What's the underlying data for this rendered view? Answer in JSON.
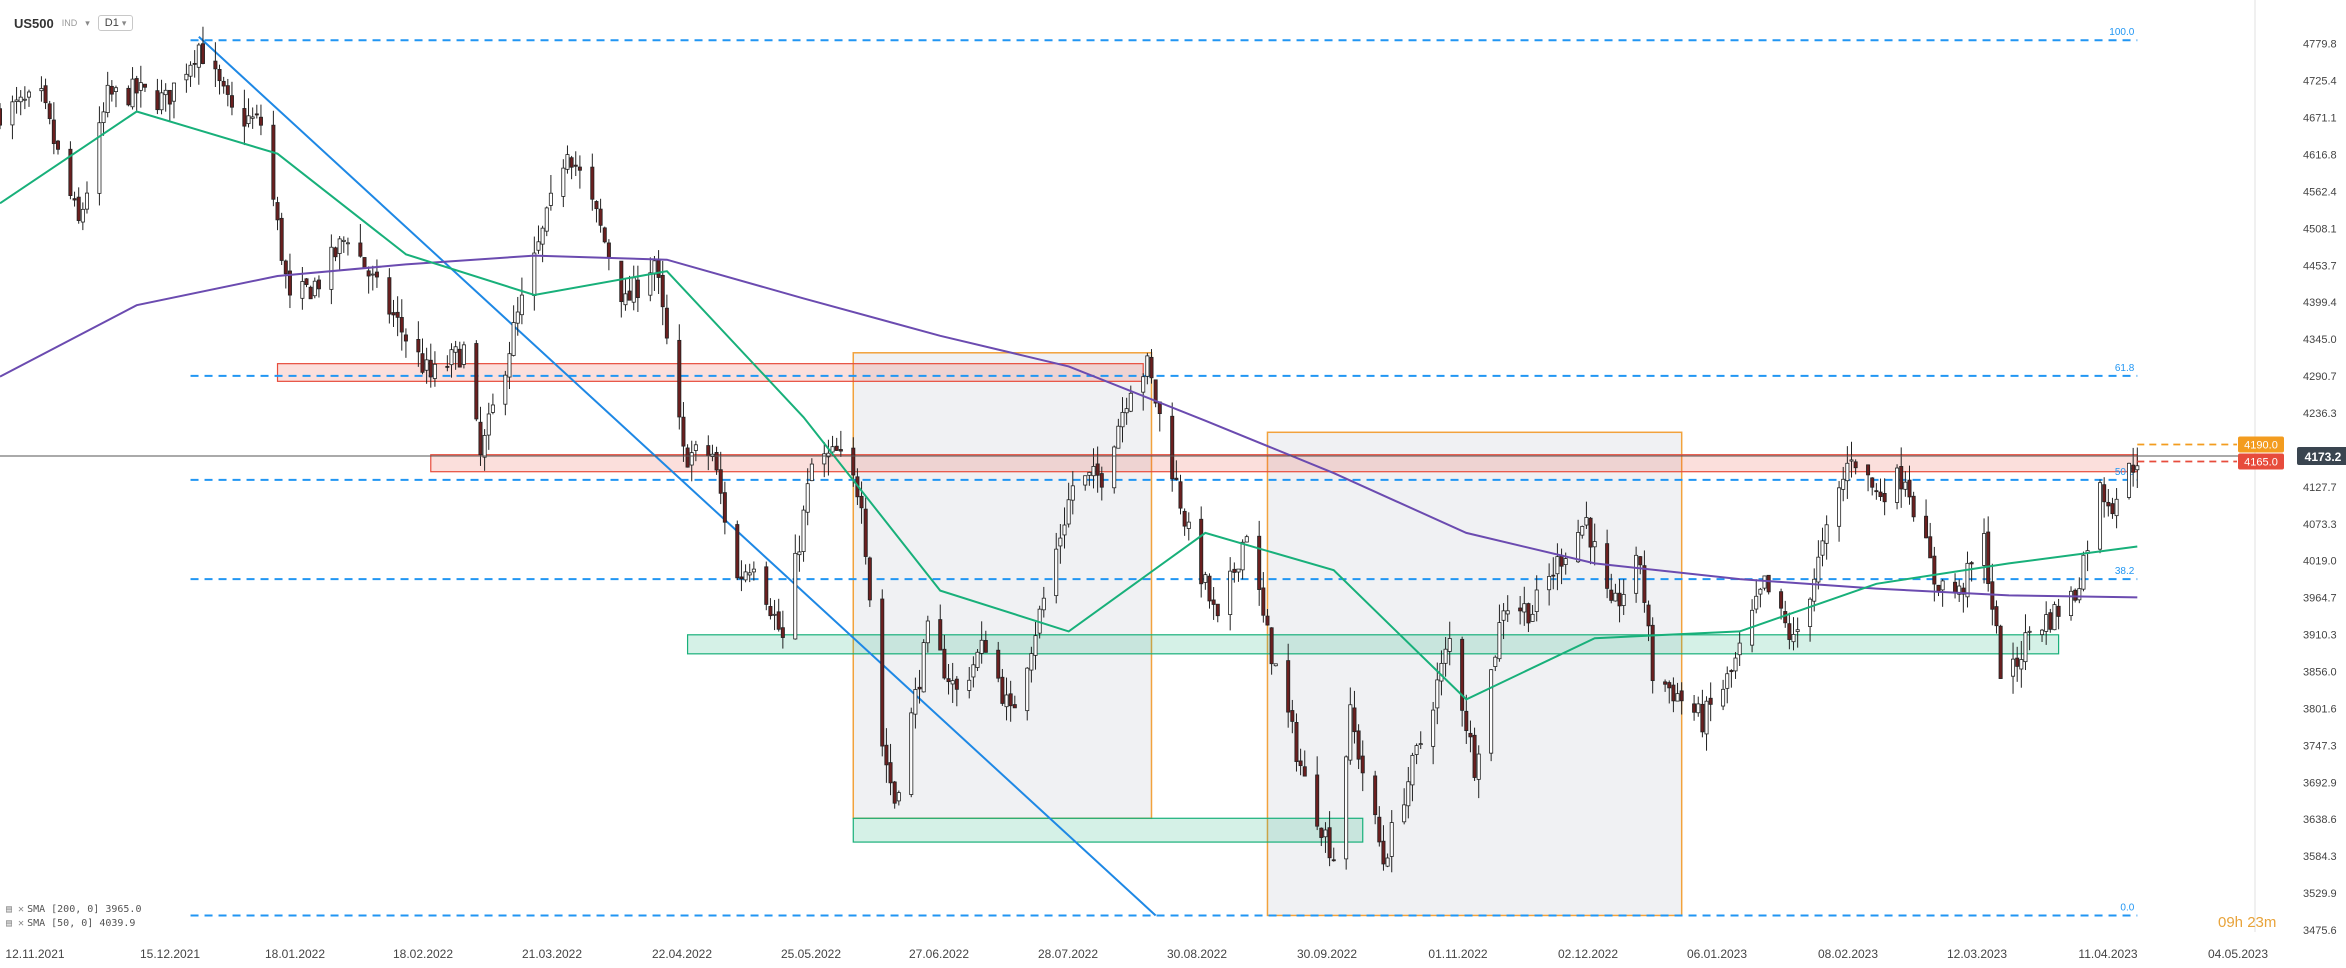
{
  "header": {
    "symbol": "US500",
    "symbol_note": "IND",
    "timeframe": "D1"
  },
  "indicators": [
    {
      "label": "SMA [200, 0]",
      "value": "3965.0",
      "color": "#6b4bb0"
    },
    {
      "label": "SMA [50, 0]",
      "value": "4039.9",
      "color": "#18b07a"
    }
  ],
  "countdown": "09h 23m",
  "chart_data": {
    "type": "candlestick",
    "ylim": [
      3475.6,
      4800
    ],
    "y_ticks": [
      "4779.8",
      "4725.4",
      "4671.1",
      "4616.8",
      "4562.4",
      "4508.1",
      "4453.7",
      "4399.4",
      "4345.0",
      "4290.7",
      "4236.3",
      "4127.7",
      "4073.3",
      "4019.0",
      "3964.7",
      "3910.3",
      "3856.0",
      "3801.6",
      "3747.3",
      "3692.9",
      "3638.6",
      "3584.3",
      "3529.9",
      "3475.6"
    ],
    "x_ticks": [
      "12.11.2021",
      "15.12.2021",
      "18.01.2022",
      "18.02.2022",
      "21.03.2022",
      "22.04.2022",
      "25.05.2022",
      "27.06.2022",
      "28.07.2022",
      "30.08.2022",
      "30.09.2022",
      "01.11.2022",
      "02.12.2022",
      "06.01.2023",
      "08.02.2023",
      "12.03.2023",
      "11.04.2023",
      "04.05.2023"
    ],
    "x_range": [
      "2021-11-12",
      "2023-05-08"
    ],
    "last_price": "4173.2",
    "price_tags": [
      {
        "label": "4190.0",
        "value": 4190.0,
        "color": "#f39c1f"
      },
      {
        "label": "4165.0",
        "value": 4165.0,
        "color": "#e74c3c"
      }
    ],
    "fib_levels": [
      {
        "label": "100.0",
        "value": 4785
      },
      {
        "label": "61.8",
        "value": 4291
      },
      {
        "label": "50.0",
        "value": 4138
      },
      {
        "label": "38.2",
        "value": 3992
      },
      {
        "label": "0.0",
        "value": 3497
      }
    ],
    "zones": [
      {
        "kind": "resistance",
        "x": [
          "2022-01-18",
          "2022-08-15"
        ],
        "y": [
          4283,
          4309
        ],
        "color": "#e74c3c"
      },
      {
        "kind": "resistance",
        "x": [
          "2022-02-24",
          "2023-04-12"
        ],
        "y": [
          4150,
          4175
        ],
        "color": "#e74c3c"
      },
      {
        "kind": "support",
        "x": [
          "2022-04-27",
          "2023-03-24"
        ],
        "y": [
          3882,
          3910
        ],
        "color": "#18b07a"
      },
      {
        "kind": "support",
        "x": [
          "2022-06-06",
          "2022-10-07"
        ],
        "y": [
          3605,
          3640
        ],
        "color": "#18b07a"
      }
    ],
    "ranges": [
      {
        "x": [
          "2022-06-06",
          "2022-08-17"
        ],
        "y": [
          3640,
          4325
        ]
      },
      {
        "x": [
          "2022-09-14",
          "2022-12-23"
        ],
        "y": [
          3497,
          4208
        ]
      }
    ],
    "trendline": {
      "from": [
        "2021-12-30",
        4790
      ],
      "to": [
        "2022-08-18",
        3497
      ]
    },
    "closes": [
      [
        "2021-11-12",
        4680
      ],
      [
        "2021-11-22",
        4697
      ],
      [
        "2021-12-01",
        4513
      ],
      [
        "2021-12-08",
        4701
      ],
      [
        "2021-12-15",
        4709
      ],
      [
        "2021-12-22",
        4696
      ],
      [
        "2021-12-30",
        4778
      ],
      [
        "2022-01-07",
        4677
      ],
      [
        "2022-01-14",
        4662
      ],
      [
        "2022-01-21",
        4397
      ],
      [
        "2022-01-28",
        4431
      ],
      [
        "2022-02-04",
        4500
      ],
      [
        "2022-02-11",
        4418
      ],
      [
        "2022-02-18",
        4348
      ],
      [
        "2022-02-24",
        4288
      ],
      [
        "2022-03-04",
        4329
      ],
      [
        "2022-03-08",
        4170
      ],
      [
        "2022-03-16",
        4357
      ],
      [
        "2022-03-24",
        4520
      ],
      [
        "2022-03-29",
        4631
      ],
      [
        "2022-04-05",
        4525
      ],
      [
        "2022-04-12",
        4397
      ],
      [
        "2022-04-19",
        4462
      ],
      [
        "2022-04-26",
        4175
      ],
      [
        "2022-05-03",
        4175
      ],
      [
        "2022-05-09",
        3991
      ],
      [
        "2022-05-13",
        4023
      ],
      [
        "2022-05-20",
        3901
      ],
      [
        "2022-05-27",
        4158
      ],
      [
        "2022-06-02",
        4176
      ],
      [
        "2022-06-08",
        4115
      ],
      [
        "2022-06-13",
        3749
      ],
      [
        "2022-06-16",
        3666
      ],
      [
        "2022-06-24",
        3911
      ],
      [
        "2022-07-01",
        3825
      ],
      [
        "2022-07-08",
        3899
      ],
      [
        "2022-07-14",
        3790
      ],
      [
        "2022-07-22",
        3962
      ],
      [
        "2022-07-29",
        4130
      ],
      [
        "2022-08-05",
        4145
      ],
      [
        "2022-08-12",
        4280
      ],
      [
        "2022-08-16",
        4305
      ],
      [
        "2022-08-26",
        4057
      ],
      [
        "2022-09-02",
        3924
      ],
      [
        "2022-09-09",
        4067
      ],
      [
        "2022-09-13",
        3932
      ],
      [
        "2022-09-23",
        3693
      ],
      [
        "2022-09-30",
        3585
      ],
      [
        "2022-10-04",
        3790
      ],
      [
        "2022-10-12",
        3577
      ],
      [
        "2022-10-17",
        3677
      ],
      [
        "2022-10-21",
        3752
      ],
      [
        "2022-10-28",
        3901
      ],
      [
        "2022-11-03",
        3720
      ],
      [
        "2022-11-10",
        3956
      ],
      [
        "2022-11-17",
        3946
      ],
      [
        "2022-11-24",
        4027
      ],
      [
        "2022-11-30",
        4080
      ],
      [
        "2022-12-06",
        3941
      ],
      [
        "2022-12-13",
        4019
      ],
      [
        "2022-12-16",
        3852
      ],
      [
        "2022-12-22",
        3822
      ],
      [
        "2022-12-28",
        3783
      ],
      [
        "2023-01-04",
        3853
      ],
      [
        "2023-01-12",
        3983
      ],
      [
        "2023-01-19",
        3898
      ],
      [
        "2023-01-25",
        4016
      ],
      [
        "2023-02-02",
        4179
      ],
      [
        "2023-02-08",
        4117
      ],
      [
        "2023-02-15",
        4147
      ],
      [
        "2023-02-22",
        3991
      ],
      [
        "2023-02-28",
        3970
      ],
      [
        "2023-03-06",
        4048
      ],
      [
        "2023-03-10",
        3861
      ],
      [
        "2023-03-13",
        3855
      ],
      [
        "2023-03-17",
        3916
      ],
      [
        "2023-03-22",
        3936
      ],
      [
        "2023-03-28",
        3971
      ],
      [
        "2023-04-03",
        4124
      ],
      [
        "2023-04-06",
        4105
      ],
      [
        "2023-04-12",
        4173.2
      ]
    ],
    "series": [
      {
        "name": "SMA [200, 0]",
        "color": "#6b4bb0",
        "points": [
          [
            "2021-11-12",
            4290
          ],
          [
            "2021-12-15",
            4395
          ],
          [
            "2022-01-18",
            4438
          ],
          [
            "2022-02-18",
            4455
          ],
          [
            "2022-03-21",
            4468
          ],
          [
            "2022-04-22",
            4462
          ],
          [
            "2022-05-25",
            4405
          ],
          [
            "2022-06-27",
            4350
          ],
          [
            "2022-07-28",
            4305
          ],
          [
            "2022-08-30",
            4225
          ],
          [
            "2022-09-30",
            4148
          ],
          [
            "2022-11-01",
            4060
          ],
          [
            "2022-12-02",
            4015
          ],
          [
            "2023-01-06",
            3992
          ],
          [
            "2023-02-08",
            3978
          ],
          [
            "2023-03-12",
            3968
          ],
          [
            "2023-04-12",
            3965
          ]
        ]
      },
      {
        "name": "SMA [50, 0]",
        "color": "#18b07a",
        "points": [
          [
            "2021-11-12",
            4545
          ],
          [
            "2021-12-15",
            4680
          ],
          [
            "2022-01-18",
            4618
          ],
          [
            "2022-02-18",
            4470
          ],
          [
            "2022-03-21",
            4410
          ],
          [
            "2022-04-22",
            4445
          ],
          [
            "2022-05-25",
            4230
          ],
          [
            "2022-06-27",
            3975
          ],
          [
            "2022-07-28",
            3915
          ],
          [
            "2022-08-30",
            4060
          ],
          [
            "2022-09-30",
            4005
          ],
          [
            "2022-11-01",
            3815
          ],
          [
            "2022-12-02",
            3905
          ],
          [
            "2023-01-06",
            3915
          ],
          [
            "2023-02-08",
            3985
          ],
          [
            "2023-03-12",
            4015
          ],
          [
            "2023-04-12",
            4040
          ]
        ]
      }
    ]
  }
}
